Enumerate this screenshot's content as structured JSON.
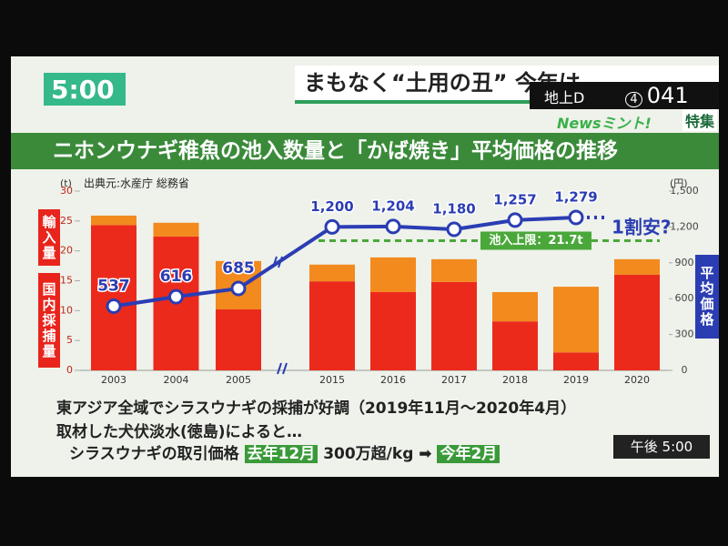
{
  "header": {
    "clock": "5:00",
    "headline": "まもなく“土用の丑” 今年は",
    "channel": "地上D",
    "channel_num": "4",
    "channel_code": "041",
    "program": "Newsミント!",
    "corner": "特集"
  },
  "chart_data": {
    "type": "bar",
    "title": "ニホンウナギ稚魚の池入数量と「かば焼き」平均価格の推移",
    "source": "出典元:水産庁 総務省",
    "y_unit": "(t)",
    "y2_unit": "(円)",
    "categories": [
      "2003",
      "2004",
      "2005",
      "2015",
      "2016",
      "2017",
      "2018",
      "2019",
      "2020"
    ],
    "series": [
      {
        "name": "国内採捕量",
        "color": "#ec2a1c",
        "values": [
          24.3,
          22.4,
          10.2,
          14.9,
          13.1,
          14.8,
          8.2,
          3.0,
          16.0
        ]
      },
      {
        "name": "輸入量",
        "color": "#f28a1e",
        "values": [
          1.6,
          2.3,
          8.1,
          2.8,
          5.8,
          3.8,
          4.9,
          11.0,
          2.6
        ]
      },
      {
        "name": "平均価格",
        "type": "line",
        "axis": "y2",
        "color": "#2b3db3",
        "values": [
          537,
          616,
          685,
          1200,
          1204,
          1180,
          1257,
          1279,
          null
        ],
        "value_labels": [
          "537",
          "616",
          "685",
          "1,200",
          "1,204",
          "1,180",
          "1,257",
          "1,279",
          null
        ]
      }
    ],
    "ylim": [
      0,
      30
    ],
    "yticks": [
      0,
      5,
      10,
      15,
      20,
      25,
      30
    ],
    "y2lim": [
      0,
      1500
    ],
    "y2ticks": [
      0,
      300,
      600,
      900,
      {
        "value": 1200,
        "label": "1,200"
      },
      {
        "value": 1500,
        "label": "1,500"
      }
    ],
    "limit": {
      "value": 21.7,
      "label": "池入上限：21.7t"
    },
    "annotation": "1割安?"
  },
  "bullets": [
    "東アジア全域でシラスウナギの採捕が好調（2019年11月～2020年4月）",
    "取材した犬伏淡水(徳島)によると…"
  ],
  "price_line": {
    "text": "シラスウナギの取引価格",
    "last_year": "去年12月",
    "price": "300万超/kg",
    "this_year": "今年2月"
  },
  "clock_bottom": "午後 5:00"
}
